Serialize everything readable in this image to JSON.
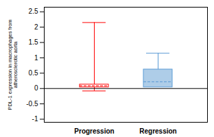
{
  "chart_data": {
    "type": "box",
    "categories": [
      "Progression",
      "Regression"
    ],
    "ylabel": "PDL-1 expression in macrophages from\natherosclerotic aorta",
    "ylim": [
      -1.1,
      2.65
    ],
    "yticks": [
      -1,
      -0.5,
      0,
      0.5,
      1,
      1.5,
      2,
      2.5
    ],
    "boxes": [
      {
        "whisker_low": -0.08,
        "q1": 0.04,
        "median": 0.09,
        "q3": 0.13,
        "whisker_high": 2.15,
        "color": "#FF0000",
        "face_color": "none"
      },
      {
        "whisker_low": null,
        "q1": 0.04,
        "median": 0.22,
        "q3": 0.62,
        "whisker_high": 1.15,
        "color": "#5b9bd5",
        "face_color": "#aecde8"
      }
    ]
  }
}
